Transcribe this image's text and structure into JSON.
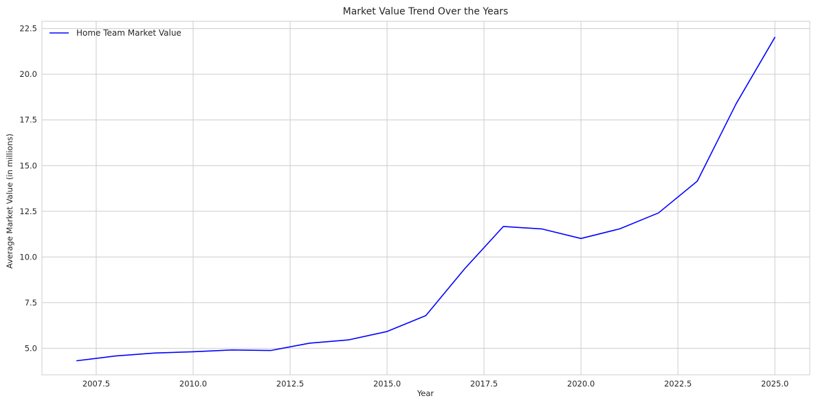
{
  "chart_data": {
    "type": "line",
    "title": "Market Value Trend Over the Years",
    "xlabel": "Year",
    "ylabel": "Average Market Value (in millions)",
    "xlim": [
      2006.1,
      2025.9
    ],
    "ylim": [
      3.55,
      22.9
    ],
    "xticks": [
      2007.5,
      2010.0,
      2012.5,
      2015.0,
      2017.5,
      2020.0,
      2022.5,
      2025.0
    ],
    "xtick_labels": [
      "2007.5",
      "2010.0",
      "2012.5",
      "2015.0",
      "2017.5",
      "2020.0",
      "2022.5",
      "2025.0"
    ],
    "yticks": [
      5.0,
      7.5,
      10.0,
      12.5,
      15.0,
      17.5,
      20.0,
      22.5
    ],
    "ytick_labels": [
      "5.0",
      "7.5",
      "10.0",
      "12.5",
      "15.0",
      "17.5",
      "20.0",
      "22.5"
    ],
    "grid": true,
    "legend_position": "top-left",
    "series": [
      {
        "name": "Home Team Market Value",
        "color": "#0000ff",
        "x": [
          2007,
          2008,
          2009,
          2010,
          2011,
          2012,
          2013,
          2014,
          2015,
          2016,
          2017,
          2018,
          2019,
          2020,
          2021,
          2022,
          2023,
          2024,
          2025
        ],
        "y": [
          4.32,
          4.58,
          4.74,
          4.81,
          4.91,
          4.88,
          5.28,
          5.46,
          5.92,
          6.79,
          9.35,
          11.67,
          11.53,
          11.01,
          11.54,
          12.41,
          14.15,
          18.38,
          22.02
        ]
      }
    ]
  }
}
